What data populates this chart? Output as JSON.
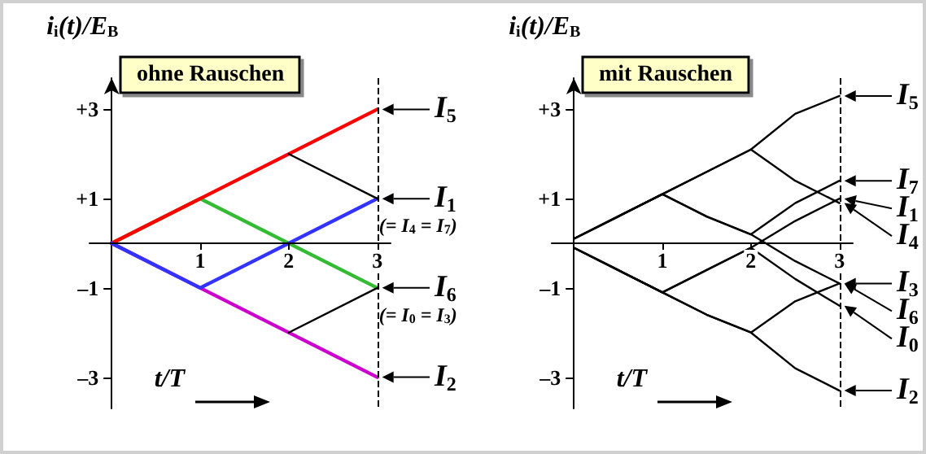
{
  "chart_data": [
    {
      "type": "line",
      "title": "ohne Rauschen",
      "xlabel": "t/T",
      "ylabel": "i$_{i}$(t)/E$_{B}$",
      "grid": false,
      "legend": "right",
      "line_style": "solid",
      "marker": "none",
      "xlim": [
        -0.25,
        3.15
      ],
      "ylim": [
        -3.7,
        3.7
      ],
      "xticks": [
        1,
        2,
        3
      ],
      "yticks": [
        {
          "value": 3,
          "label": "+3"
        },
        {
          "value": 1,
          "label": "+1"
        },
        {
          "value": -1,
          "label": "–1"
        },
        {
          "value": -3,
          "label": "–3"
        }
      ],
      "ref_lines": [
        {
          "axis": "x",
          "value": 3,
          "line_style": "dashed",
          "color": "#000000"
        }
      ],
      "series": [
        {
          "name": "I$_{6}$",
          "color": "#33bb33",
          "x": [
            0,
            1,
            3
          ],
          "values": [
            0,
            1,
            -1
          ]
        },
        {
          "name": "I$_{5}$",
          "color": "#ff0000",
          "x": [
            0,
            3
          ],
          "values": [
            0,
            3
          ]
        },
        {
          "name": "I$_{2}$",
          "color": "#cc00cc",
          "x": [
            0,
            3
          ],
          "values": [
            0,
            -3
          ]
        },
        {
          "name": "I$_{1}$",
          "color": "#3333ff",
          "x": [
            0,
            1,
            3
          ],
          "values": [
            0,
            -1,
            1
          ]
        },
        {
          "color": "#000000",
          "x": [
            2,
            3
          ],
          "values": [
            2,
            1
          ]
        },
        {
          "color": "#000000",
          "x": [
            2,
            3
          ],
          "values": [
            -2,
            -1
          ]
        }
      ],
      "annotations": [
        {
          "text": "(= I$_{4}$ = I$_{7}$)",
          "x": 3,
          "y": 1
        },
        {
          "text": "(= I$_{0}$ = I$_{3}$)",
          "x": 3,
          "y": -1
        }
      ]
    },
    {
      "type": "line",
      "title": "mit Rauschen",
      "xlabel": "t/T",
      "ylabel": "i$_{i}$(t)/E$_{B}$",
      "grid": false,
      "legend": "right",
      "line_style": "solid",
      "marker": "none",
      "xlim": [
        -0.25,
        3.15
      ],
      "ylim": [
        -3.7,
        3.7
      ],
      "xticks": [
        1,
        2,
        3
      ],
      "yticks": [
        {
          "value": 3,
          "label": "+3"
        },
        {
          "value": 1,
          "label": "+1"
        },
        {
          "value": -1,
          "label": "–1"
        },
        {
          "value": -3,
          "label": "–3"
        }
      ],
      "ref_lines": [
        {
          "axis": "x",
          "value": 3,
          "line_style": "dashed",
          "color": "#000000"
        }
      ],
      "x": [
        0,
        0.5,
        1,
        1.5,
        2,
        2.5,
        3
      ],
      "series": [
        {
          "name": "I$_{5}$",
          "color": "#000000",
          "values": [
            0.1,
            0.6,
            1.1,
            1.6,
            2.1,
            2.9,
            3.3
          ]
        },
        {
          "name": "I$_{7}$",
          "color": "#000000",
          "values": [
            0.1,
            0.6,
            1.1,
            0.6,
            0.2,
            0.9,
            1.4
          ]
        },
        {
          "name": "I$_{1}$",
          "color": "#000000",
          "values": [
            -0.1,
            -0.6,
            -1.1,
            -0.6,
            -0.1,
            0.5,
            1.0
          ]
        },
        {
          "name": "I$_{4}$",
          "color": "#000000",
          "values": [
            0.1,
            0.6,
            1.1,
            1.6,
            2.1,
            1.4,
            0.9
          ]
        },
        {
          "name": "I$_{3}$",
          "color": "#000000",
          "values": [
            0.1,
            0.6,
            1.1,
            0.6,
            0.2,
            -0.4,
            -0.9
          ]
        },
        {
          "name": "I$_{6}$",
          "color": "#000000",
          "values": [
            -0.1,
            -0.6,
            -1.1,
            -1.6,
            -2.0,
            -1.3,
            -0.9
          ]
        },
        {
          "name": "I$_{0}$",
          "color": "#000000",
          "values": [
            -0.1,
            -0.6,
            -1.1,
            -0.6,
            -0.1,
            -0.8,
            -1.4
          ]
        },
        {
          "name": "I$_{2}$",
          "color": "#000000",
          "values": [
            -0.1,
            -0.6,
            -1.1,
            -1.6,
            -2.0,
            -2.8,
            -3.3
          ]
        }
      ]
    }
  ]
}
